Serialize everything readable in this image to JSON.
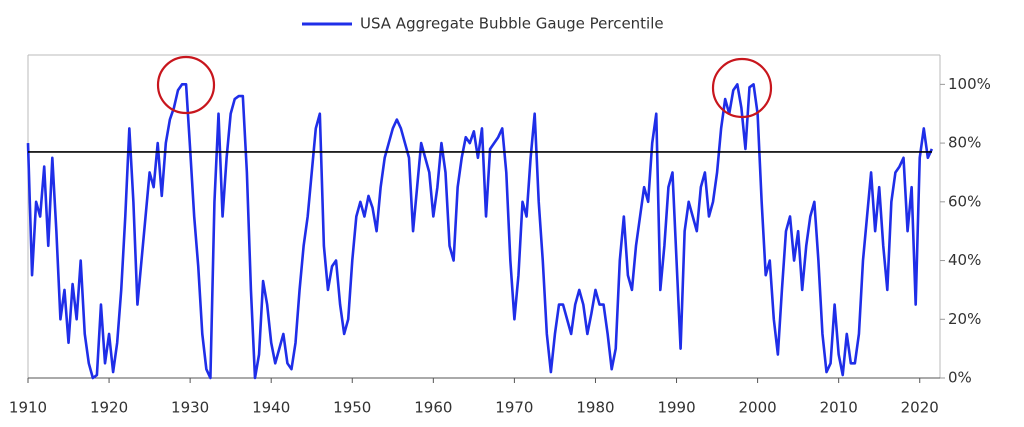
{
  "chart_data": {
    "type": "line",
    "series": [
      {
        "name": "USA Aggregate Bubble Gauge Percentile",
        "color": "#1f2ee8",
        "values": [
          80,
          35,
          60,
          55,
          72,
          45,
          75,
          50,
          20,
          30,
          12,
          32,
          20,
          40,
          15,
          5,
          0,
          1,
          25,
          5,
          15,
          2,
          12,
          30,
          55,
          85,
          60,
          25,
          40,
          55,
          70,
          65,
          80,
          62,
          80,
          88,
          92,
          98,
          100,
          100,
          78,
          55,
          38,
          15,
          3,
          0,
          60,
          90,
          55,
          75,
          90,
          95,
          96,
          96,
          70,
          30,
          0,
          8,
          33,
          25,
          12,
          5,
          10,
          15,
          5,
          3,
          12,
          30,
          45,
          55,
          70,
          85,
          90,
          45,
          30,
          38,
          40,
          25,
          15,
          20,
          40,
          55,
          60,
          55,
          62,
          58,
          50,
          65,
          75,
          80,
          85,
          88,
          85,
          80,
          75,
          50,
          65,
          80,
          75,
          70,
          55,
          65,
          80,
          70,
          45,
          40,
          65,
          75,
          82,
          80,
          84,
          75,
          85,
          55,
          78,
          80,
          82,
          85,
          70,
          40,
          20,
          35,
          60,
          55,
          75,
          90,
          60,
          40,
          15,
          2,
          15,
          25,
          25,
          20,
          15,
          25,
          30,
          25,
          15,
          22,
          30,
          25,
          25,
          15,
          3,
          10,
          40,
          55,
          35,
          30,
          45,
          55,
          65,
          60,
          80,
          90,
          30,
          45,
          65,
          70,
          40,
          10,
          50,
          60,
          55,
          50,
          65,
          70,
          55,
          60,
          70,
          85,
          95,
          90,
          98,
          100,
          92,
          78,
          99,
          100,
          90,
          60,
          35,
          40,
          20,
          8,
          30,
          50,
          55,
          40,
          50,
          30,
          45,
          55,
          60,
          40,
          15,
          2,
          5,
          25,
          8,
          1,
          15,
          5,
          5,
          15,
          40,
          55,
          70,
          50,
          65,
          45,
          30,
          60,
          70,
          72,
          75,
          50,
          65,
          25,
          75,
          85,
          75,
          78
        ]
      }
    ],
    "x": [
      1910,
      1910.5,
      1911,
      1911.5,
      1912,
      1912.5,
      1913,
      1913.5,
      1914,
      1914.5,
      1915,
      1915.5,
      1916,
      1916.5,
      1917,
      1917.5,
      1918,
      1918.5,
      1919,
      1919.5,
      1920,
      1920.5,
      1921,
      1921.5,
      1922,
      1922.5,
      1923,
      1923.5,
      1924,
      1924.5,
      1925,
      1925.5,
      1926,
      1926.5,
      1927,
      1927.5,
      1928,
      1928.5,
      1929,
      1929.5,
      1930,
      1930.5,
      1931,
      1931.5,
      1932,
      1932.5,
      1933,
      1933.5,
      1934,
      1934.5,
      1935,
      1935.5,
      1936,
      1936.5,
      1937,
      1937.5,
      1938,
      1938.5,
      1939,
      1939.5,
      1940,
      1940.5,
      1941,
      1941.5,
      1942,
      1942.5,
      1943,
      1943.5,
      1944,
      1944.5,
      1945,
      1945.5,
      1946,
      1946.5,
      1947,
      1947.5,
      1948,
      1948.5,
      1949,
      1949.5,
      1950,
      1950.5,
      1951,
      1951.5,
      1952,
      1952.5,
      1953,
      1953.5,
      1954,
      1954.5,
      1955,
      1955.5,
      1956,
      1956.5,
      1957,
      1957.5,
      1958,
      1958.5,
      1959,
      1959.5,
      1960,
      1960.5,
      1961,
      1961.5,
      1962,
      1962.5,
      1963,
      1963.5,
      1964,
      1964.5,
      1965,
      1965.5,
      1966,
      1966.5,
      1967,
      1967.5,
      1968,
      1968.5,
      1969,
      1969.5,
      1970,
      1970.5,
      1971,
      1971.5,
      1972,
      1972.5,
      1973,
      1973.5,
      1974,
      1974.5,
      1975,
      1975.5,
      1976,
      1976.5,
      1977,
      1977.5,
      1978,
      1978.5,
      1979,
      1979.5,
      1980,
      1980.5,
      1981,
      1981.5,
      1982,
      1982.5,
      1983,
      1983.5,
      1984,
      1984.5,
      1985,
      1985.5,
      1986,
      1986.5,
      1987,
      1987.5,
      1988,
      1988.5,
      1989,
      1989.5,
      1990,
      1990.5,
      1991,
      1991.5,
      1992,
      1992.5,
      1993,
      1993.5,
      1994,
      1994.5,
      1995,
      1995.5,
      1996,
      1996.5,
      1997,
      1997.5,
      1998,
      1998.5,
      1999,
      1999.5,
      2000,
      2000.5,
      2001,
      2001.5,
      2002,
      2002.5,
      2003,
      2003.5,
      2004,
      2004.5,
      2005,
      2005.5,
      2006,
      2006.5,
      2007,
      2007.5,
      2008,
      2008.5,
      2009,
      2009.5,
      2010,
      2010.5,
      2011,
      2011.5,
      2012,
      2012.5,
      2013,
      2013.5,
      2014,
      2014.5,
      2015,
      2015.5,
      2016,
      2016.5,
      2017,
      2017.5,
      2018,
      2018.5,
      2019,
      2019.5,
      2020,
      2020.5,
      2021,
      2021.5
    ],
    "xlim": [
      1910,
      2022.5
    ],
    "xticks": [
      1910,
      1920,
      1930,
      1940,
      1950,
      1960,
      1970,
      1980,
      1990,
      2000,
      2010,
      2020
    ],
    "ylim": [
      0,
      110
    ],
    "yticks": [
      {
        "value": 0,
        "label": "0%"
      },
      {
        "value": 20,
        "label": "20%"
      },
      {
        "value": 40,
        "label": "40%"
      },
      {
        "value": 60,
        "label": "60%"
      },
      {
        "value": 80,
        "label": "80%"
      },
      {
        "value": 100,
        "label": "100%"
      }
    ],
    "reference_line": 77,
    "legend": "top"
  }
}
